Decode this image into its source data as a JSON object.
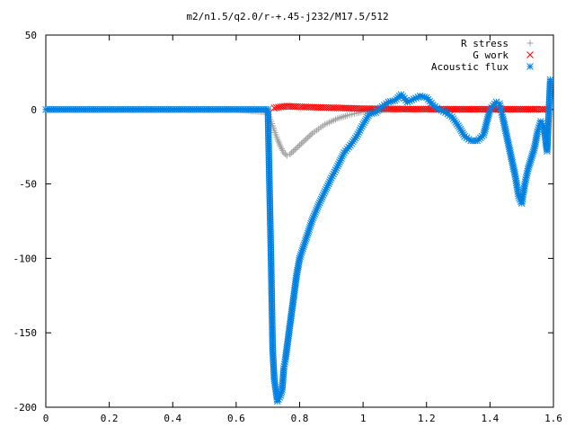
{
  "chart_data": {
    "type": "scatter",
    "title": "m2/n1.5/q2.0/r-+.45-j232/M17.5/512",
    "xlabel": "",
    "ylabel": "",
    "xlim": [
      0,
      1.6
    ],
    "ylim": [
      -200,
      50
    ],
    "xticks": [
      "0",
      "0.2",
      "0.4",
      "0.6",
      "0.8",
      "1",
      "1.2",
      "1.4",
      "1.6"
    ],
    "yticks": [
      "50",
      "0",
      "-50",
      "-100",
      "-150",
      "-200"
    ],
    "grid": false,
    "legend_position": "top-right",
    "series": [
      {
        "name": "R stress",
        "marker": "plus",
        "color": "#a0a0a0",
        "x": [
          0.0,
          0.1,
          0.2,
          0.3,
          0.4,
          0.5,
          0.6,
          0.7,
          0.71,
          0.72,
          0.73,
          0.74,
          0.75,
          0.76,
          0.77,
          0.78,
          0.8,
          0.82,
          0.84,
          0.86,
          0.88,
          0.9,
          0.92,
          0.95,
          0.98,
          1.0,
          1.05,
          1.1,
          1.15,
          1.2,
          1.3,
          1.4,
          1.5,
          1.58
        ],
        "y": [
          0,
          0,
          0,
          0,
          0,
          0,
          0,
          -2,
          -8,
          -14,
          -20,
          -25,
          -29,
          -31,
          -30,
          -28,
          -24,
          -20,
          -16,
          -13,
          -10,
          -8,
          -6,
          -4,
          -2.5,
          -1.5,
          -0.5,
          0,
          0,
          0,
          0,
          0,
          0,
          0
        ]
      },
      {
        "name": "G work",
        "marker": "cross",
        "color": "#ff0000",
        "x": [
          0.72,
          0.74,
          0.76,
          0.78,
          0.8,
          0.85,
          0.9,
          0.95,
          1.0,
          1.05,
          1.1,
          1.15,
          1.2,
          1.25,
          1.3,
          1.35,
          1.4,
          1.45,
          1.5,
          1.55,
          1.58
        ],
        "y": [
          1,
          1.8,
          2.2,
          2,
          1.8,
          1.5,
          1.2,
          0.9,
          0.6,
          0.5,
          0.4,
          0.3,
          0.3,
          0.2,
          0.2,
          0.2,
          0.2,
          0.2,
          0.2,
          0.2,
          0.2
        ]
      },
      {
        "name": "Acoustic flux",
        "marker": "star",
        "color": "#0080e0",
        "x": [
          0.0,
          0.1,
          0.2,
          0.3,
          0.4,
          0.5,
          0.6,
          0.7,
          0.71,
          0.715,
          0.72,
          0.73,
          0.74,
          0.745,
          0.75,
          0.755,
          0.76,
          0.77,
          0.78,
          0.79,
          0.8,
          0.82,
          0.84,
          0.86,
          0.88,
          0.9,
          0.92,
          0.94,
          0.96,
          0.98,
          1.0,
          1.02,
          1.04,
          1.06,
          1.08,
          1.1,
          1.12,
          1.14,
          1.16,
          1.18,
          1.2,
          1.22,
          1.24,
          1.26,
          1.28,
          1.3,
          1.32,
          1.34,
          1.36,
          1.38,
          1.4,
          1.42,
          1.43,
          1.44,
          1.46,
          1.48,
          1.49,
          1.5,
          1.51,
          1.52,
          1.54,
          1.55,
          1.56,
          1.57,
          1.58,
          1.59
        ],
        "y": [
          0,
          0,
          0,
          0,
          0,
          0,
          0,
          0,
          -102,
          -161,
          -181,
          -196,
          -192,
          -188,
          -174,
          -168,
          -160,
          -144,
          -128,
          -112,
          -100,
          -87,
          -74,
          -64,
          -55,
          -46,
          -38,
          -29,
          -24,
          -18,
          -10,
          -3,
          -2,
          2,
          5,
          6,
          10,
          5,
          7,
          9,
          8,
          3,
          0,
          -2,
          -5,
          -11,
          -18,
          -21,
          -21,
          -17,
          0,
          5,
          4,
          -5,
          -25,
          -45,
          -58,
          -63,
          -50,
          -40,
          -26,
          -15,
          -8,
          -12,
          -28,
          20
        ]
      }
    ]
  }
}
